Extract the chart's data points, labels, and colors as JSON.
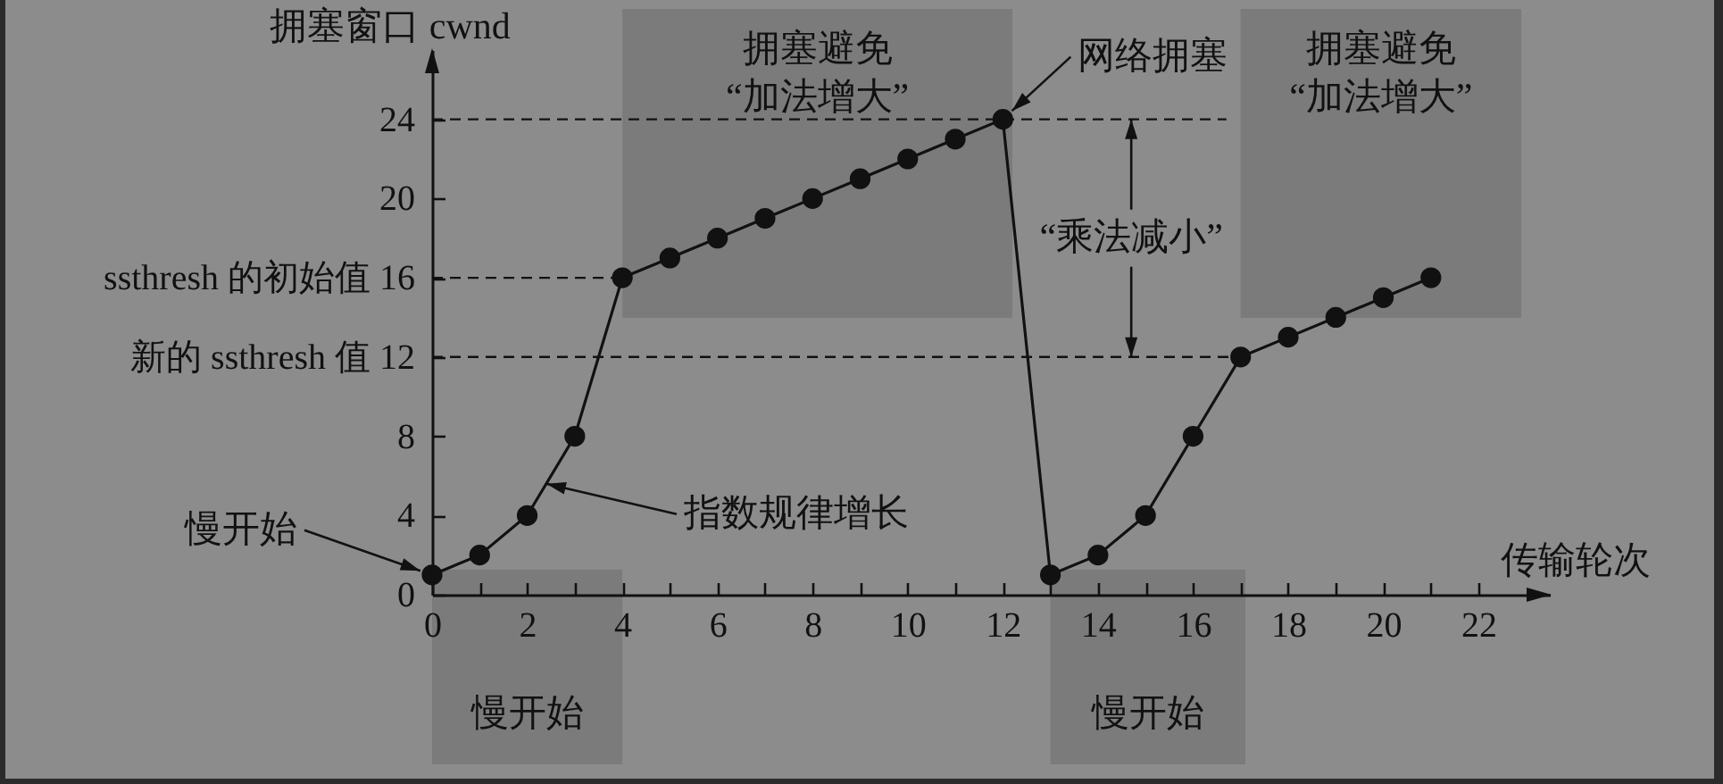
{
  "chart_data": {
    "type": "line",
    "xlabel": "传输轮次",
    "ylabel": "拥塞窗口 cwnd",
    "x": [
      0,
      1,
      2,
      3,
      4,
      5,
      6,
      7,
      8,
      9,
      10,
      11,
      12,
      13,
      14,
      15,
      16,
      17,
      18,
      19,
      20,
      21
    ],
    "series": [
      {
        "color": "#111111",
        "values": [
          1,
          2,
          4,
          8,
          16,
          17,
          18,
          19,
          20,
          21,
          22,
          23,
          24,
          1,
          2,
          4,
          8,
          12,
          13,
          14,
          15,
          16
        ]
      }
    ],
    "xlim": [
      0,
      23.5
    ],
    "ylim": [
      0,
      27.5
    ],
    "xticks": [
      0,
      {
        "value": 1,
        "label": null
      },
      2,
      {
        "value": 3,
        "label": null
      },
      4,
      {
        "value": 5,
        "label": null
      },
      6,
      {
        "value": 7,
        "label": null
      },
      8,
      {
        "value": 9,
        "label": null
      },
      10,
      {
        "value": 11,
        "label": null
      },
      12,
      {
        "value": 13,
        "label": null
      },
      14,
      {
        "value": 15,
        "label": null
      },
      16,
      {
        "value": 17,
        "label": null
      },
      18,
      {
        "value": 19,
        "label": null
      },
      20,
      {
        "value": 21,
        "label": null
      },
      22
    ],
    "yticks": [
      0,
      4,
      8,
      {
        "value": 12,
        "label": "新的 ssthresh 值 12"
      },
      {
        "value": 16,
        "label": "ssthresh 的初始值 16"
      },
      20,
      24
    ],
    "ref_lines": [
      {
        "axis": "y",
        "value": 24,
        "line_style": "dashed"
      },
      {
        "axis": "y",
        "value": 16,
        "line_style": "dashed"
      },
      {
        "axis": "y",
        "value": 12,
        "line_style": "dashed"
      }
    ],
    "bands": [
      {
        "axis": "x",
        "from": 0,
        "to": 4,
        "label": "慢开始",
        "color": "#7b7b7b"
      },
      {
        "axis": "x",
        "from": 4,
        "to": 12.2,
        "label": "拥塞避免\n“加法增大”",
        "color": "#7b7b7b"
      },
      {
        "axis": "x",
        "from": 13,
        "to": 17.1,
        "label": "慢开始",
        "color": "#7b7b7b"
      },
      {
        "axis": "x",
        "from": 17,
        "to": 22.9,
        "label": "拥塞避免\n“加法增大”",
        "color": "#7b7b7b"
      }
    ],
    "annotations": [
      {
        "text": "慢开始",
        "x": 0,
        "y": 1
      },
      {
        "text": "指数规律增长",
        "x": 2.4,
        "y": 5.6
      },
      {
        "text": "网络拥塞",
        "x": 12,
        "y": 24
      },
      {
        "text": "“乘法减小”",
        "x": 14.7,
        "y": 24
      }
    ],
    "marker": "circle",
    "line_style": "solid"
  }
}
